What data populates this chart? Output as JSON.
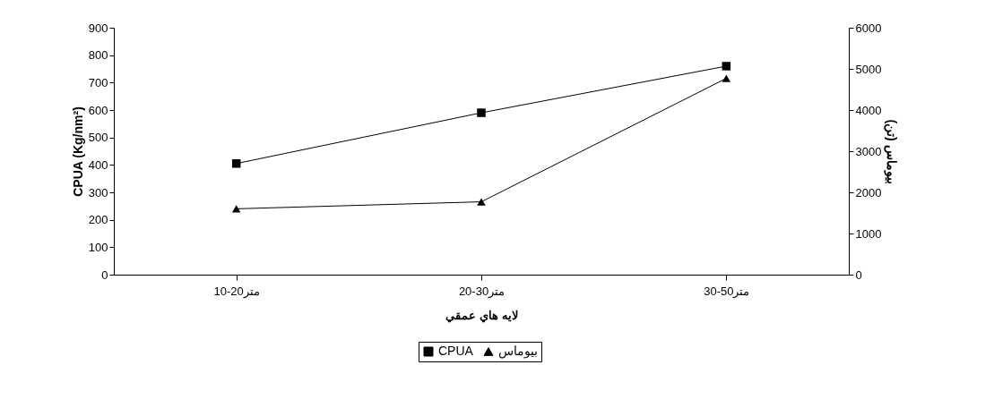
{
  "chart_data": {
    "type": "line",
    "xlabel": "لايه هاي عمقي",
    "ylabel": "CPUA (Kg/nm²)",
    "y2label": "بيوماس (تن)",
    "categories": [
      "10-20متر",
      "20-30متر",
      "30-50متر"
    ],
    "series": [
      {
        "name": "CPUA",
        "color": "#000000",
        "marker": "square",
        "values": [
          405,
          590,
          760
        ]
      },
      {
        "name": "بيوماس",
        "color": "#000000",
        "marker": "triangle",
        "axis": "y2",
        "values": [
          1600,
          1770,
          4770
        ]
      }
    ],
    "ylim": [
      0,
      900
    ],
    "yticks": [
      0,
      100,
      200,
      300,
      400,
      500,
      600,
      700,
      800,
      900
    ],
    "y2lim": [
      0,
      6000
    ],
    "y2ticks": [
      0,
      1000,
      2000,
      3000,
      4000,
      5000,
      6000
    ],
    "grid": false,
    "legend": "bottom"
  }
}
